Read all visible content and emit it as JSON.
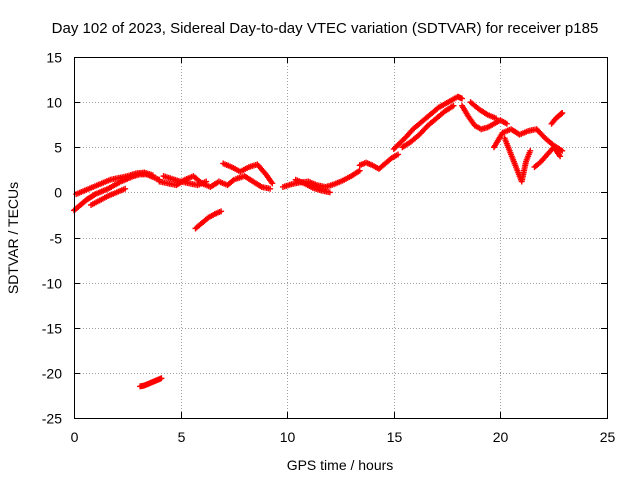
{
  "chart_data": {
    "type": "scatter",
    "title": "Day 102 of 2023, Sidereal Day-to-day VTEC variation (SDTVAR) for receiver p185",
    "xlabel": "GPS time / hours",
    "ylabel": "SDTVAR / TECUs",
    "xlim": [
      0,
      25
    ],
    "ylim": [
      -25,
      15
    ],
    "xticks": [
      0,
      5,
      10,
      15,
      20,
      25
    ],
    "yticks": [
      -25,
      -20,
      -15,
      -10,
      -5,
      0,
      5,
      10,
      15
    ],
    "grid": true,
    "marker": "+",
    "color": "#ff0000",
    "series": [
      {
        "name": "SDTVAR",
        "segments": [
          {
            "x": [
              0.0,
              0.2,
              0.4,
              0.6,
              0.8,
              1.0,
              1.3,
              1.6,
              1.9,
              2.2,
              2.5,
              2.8,
              3.1,
              3.4,
              3.7,
              4.0
            ],
            "y": [
              -2.0,
              -1.6,
              -1.2,
              -0.8,
              -0.5,
              -0.2,
              0.1,
              0.4,
              0.8,
              1.2,
              1.5,
              1.8,
              2.0,
              2.0,
              1.7,
              1.4
            ]
          },
          {
            "x": [
              0.1,
              0.5,
              0.9,
              1.3,
              1.7,
              2.1,
              2.5,
              2.9,
              3.3,
              3.7
            ],
            "y": [
              -0.2,
              0.2,
              0.6,
              1.0,
              1.4,
              1.6,
              1.8,
              2.1,
              2.2,
              1.9
            ]
          },
          {
            "x": [
              0.8,
              1.2,
              1.6,
              2.0,
              2.4
            ],
            "y": [
              -1.4,
              -0.9,
              -0.4,
              0.0,
              0.4
            ]
          },
          {
            "x": [
              4.0,
              4.4,
              4.8,
              5.2,
              5.6,
              6.0,
              6.4,
              6.8,
              7.2,
              7.5
            ],
            "y": [
              1.2,
              1.0,
              0.8,
              1.4,
              1.8,
              1.0,
              0.6,
              1.2,
              0.8,
              1.4
            ]
          },
          {
            "x": [
              4.2,
              4.6,
              5.0,
              5.4,
              5.8,
              6.2
            ],
            "y": [
              1.8,
              1.5,
              1.2,
              1.0,
              0.8,
              1.2
            ]
          },
          {
            "x": [
              5.7,
              6.0,
              6.3,
              6.6,
              6.9
            ],
            "y": [
              -4.0,
              -3.4,
              -2.8,
              -2.4,
              -2.1
            ]
          },
          {
            "x": [
              3.1,
              3.3,
              3.5,
              3.7,
              3.9,
              4.1
            ],
            "y": [
              -21.5,
              -21.4,
              -21.2,
              -21.0,
              -20.8,
              -20.6
            ]
          },
          {
            "x": [
              7.0,
              7.4,
              7.8,
              8.2,
              8.6,
              9.0,
              9.3
            ],
            "y": [
              3.2,
              2.8,
              2.3,
              2.8,
              3.1,
              2.0,
              1.0
            ]
          },
          {
            "x": [
              7.6,
              8.0,
              8.4,
              8.8,
              9.2
            ],
            "y": [
              1.5,
              1.8,
              1.2,
              0.6,
              0.4
            ]
          },
          {
            "x": [
              9.8,
              10.2,
              10.6,
              11.0,
              11.4,
              11.8,
              12.2,
              12.6,
              13.0,
              13.4
            ],
            "y": [
              0.6,
              0.9,
              1.1,
              1.2,
              0.8,
              0.6,
              0.9,
              1.3,
              1.8,
              2.4
            ]
          },
          {
            "x": [
              10.4,
              10.8,
              11.2,
              11.6,
              12.0
            ],
            "y": [
              1.4,
              1.0,
              0.5,
              0.2,
              0.0
            ]
          },
          {
            "x": [
              13.4,
              13.7,
              14.0,
              14.3,
              14.6,
              14.9,
              15.2
            ],
            "y": [
              3.0,
              3.3,
              3.0,
              2.6,
              3.2,
              3.8,
              4.2
            ]
          },
          {
            "x": [
              15.0,
              15.3,
              15.6,
              15.9,
              16.2,
              16.5,
              16.8,
              17.1,
              17.4,
              17.7,
              18.0,
              18.2
            ],
            "y": [
              4.8,
              5.5,
              6.2,
              7.0,
              7.6,
              8.2,
              8.8,
              9.4,
              9.8,
              10.2,
              10.6,
              10.4
            ]
          },
          {
            "x": [
              15.4,
              15.8,
              16.2,
              16.6,
              17.0,
              17.4,
              17.8
            ],
            "y": [
              5.0,
              5.6,
              6.4,
              7.4,
              8.2,
              9.0,
              9.6
            ]
          },
          {
            "x": [
              18.2,
              18.5,
              18.8,
              19.1,
              19.4,
              19.7,
              20.0,
              20.3
            ],
            "y": [
              9.6,
              8.4,
              7.4,
              7.0,
              7.2,
              7.6,
              8.0,
              7.6
            ]
          },
          {
            "x": [
              18.6,
              19.0,
              19.4,
              19.8
            ],
            "y": [
              10.0,
              9.2,
              8.6,
              8.2
            ]
          },
          {
            "x": [
              20.2,
              20.4,
              20.6,
              20.8,
              21.0,
              21.2,
              21.4
            ],
            "y": [
              6.0,
              4.8,
              3.6,
              2.4,
              1.2,
              3.4,
              4.6
            ]
          },
          {
            "x": [
              19.7,
              20.1,
              20.5,
              20.9,
              21.3,
              21.7,
              22.1,
              22.5,
              22.9
            ],
            "y": [
              5.0,
              6.6,
              7.0,
              6.4,
              6.8,
              7.0,
              6.0,
              5.2,
              4.6
            ]
          },
          {
            "x": [
              21.6,
              21.9,
              22.2,
              22.5,
              22.8
            ],
            "y": [
              2.8,
              3.4,
              4.2,
              5.0,
              4.0
            ]
          },
          {
            "x": [
              22.4,
              22.6,
              22.8,
              22.9
            ],
            "y": [
              7.6,
              8.2,
              8.6,
              8.8
            ]
          }
        ]
      }
    ]
  }
}
